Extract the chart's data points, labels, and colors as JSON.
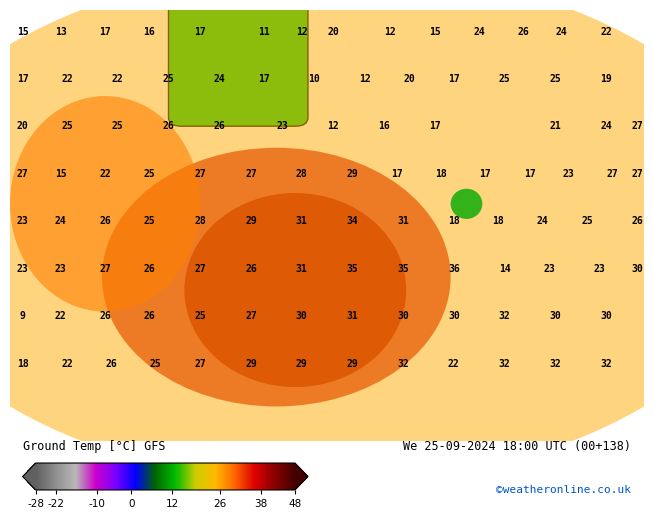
{
  "title_left": "Ground Temp [°C] GFS",
  "title_right": "We 25-09-2024 18:00 UTC (00+138)",
  "credit": "©weatheronline.co.uk",
  "colorbar_ticks": [
    -28,
    -22,
    -10,
    0,
    12,
    26,
    38,
    48
  ],
  "colorbar_colors": [
    "#7f7f7f",
    "#b0b0b0",
    "#d8d8d8",
    "#cc00cc",
    "#8800ff",
    "#0000ff",
    "#008800",
    "#00cc00",
    "#ffff00",
    "#ffaa00",
    "#ff5500",
    "#cc0000",
    "#880000",
    "#440000"
  ],
  "bg_color": "#ffffff",
  "map_bg": "#ff8c00",
  "fig_width": 6.34,
  "fig_height": 4.9
}
